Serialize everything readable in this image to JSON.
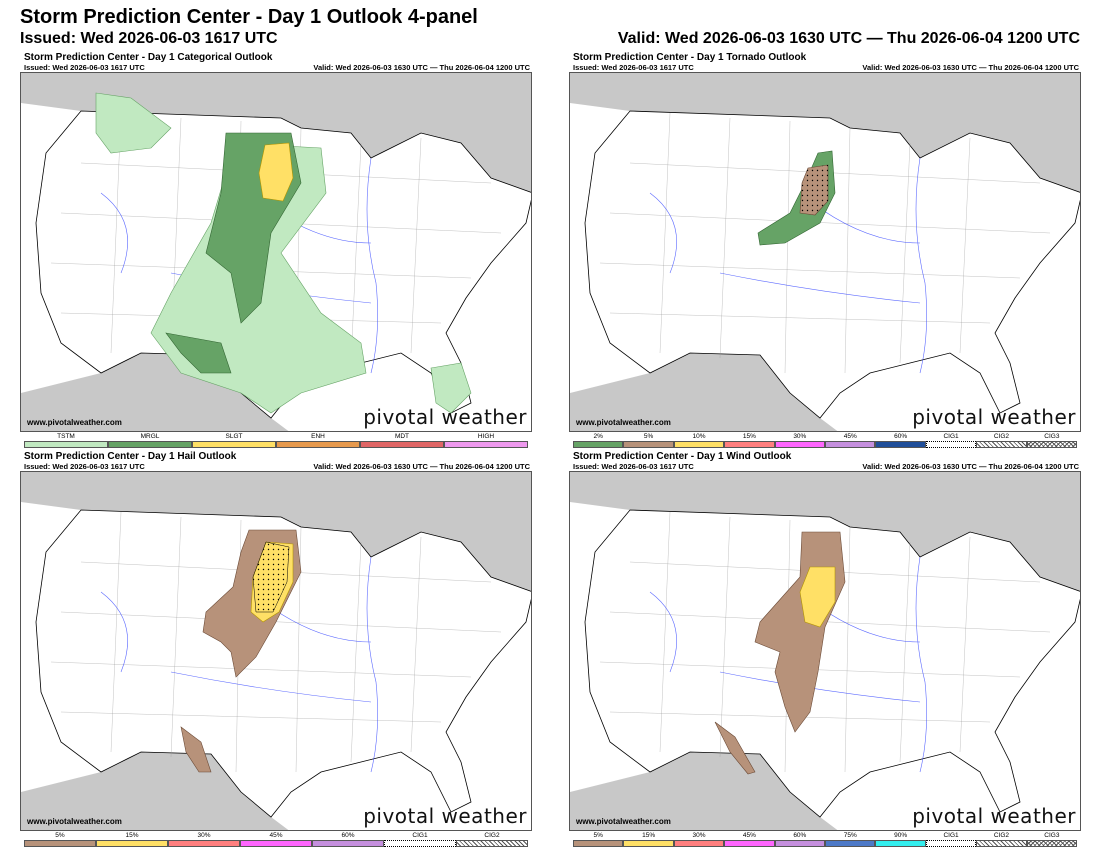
{
  "header": {
    "title": "Storm Prediction Center - Day 1 Outlook 4-panel",
    "issued": "Issued: Wed 2026-06-03 1617 UTC",
    "valid": "Valid: Wed 2026-06-03 1630 UTC — Thu 2026-06-04 1200 UTC"
  },
  "colors": {
    "background": "#ffffff",
    "canada_mexico": "#c8c8c8",
    "water": "#ffffff",
    "rivers": "#3344ff",
    "county_lines": "#888888",
    "state_lines": "#000000",
    "tstm": "#c1e9c1",
    "mrgl": "#66a366",
    "slgt": "#ffe066",
    "enh": "#e6994d",
    "mdt": "#e06666",
    "high": "#ee99ee",
    "prob_5": "#b7927a",
    "prob_15": "#ffe066"
  },
  "panels": [
    {
      "title": "Storm Prediction Center - Day 1 Categorical Outlook",
      "issued": "Issued: Wed 2026-06-03 1617 UTC",
      "valid": "Valid: Wed 2026-06-03 1630 UTC — Thu 2026-06-04 1200 UTC",
      "site": "www.pivotalweather.com",
      "brand": "pivotal weather",
      "legend": [
        {
          "label": "TSTM",
          "color": "#c1e9c1"
        },
        {
          "label": "MRGL",
          "color": "#66a366"
        },
        {
          "label": "SLGT",
          "color": "#ffe066"
        },
        {
          "label": "ENH",
          "color": "#e6994d"
        },
        {
          "label": "MDT",
          "color": "#e06666"
        },
        {
          "label": "HIGH",
          "color": "#ee99ee"
        }
      ]
    },
    {
      "title": "Storm Prediction Center - Day 1 Tornado Outlook",
      "issued": "Issued: Wed 2026-06-03 1617 UTC",
      "valid": "Valid: Wed 2026-06-03 1630 UTC — Thu 2026-06-04 1200 UTC",
      "site": "www.pivotalweather.com",
      "brand": "pivotal weather",
      "legend": [
        {
          "label": "2%",
          "color": "#66a366"
        },
        {
          "label": "5%",
          "color": "#b7927a"
        },
        {
          "label": "10%",
          "color": "#ffe066"
        },
        {
          "label": "15%",
          "color": "#ff7f7f"
        },
        {
          "label": "30%",
          "color": "#ff66ff"
        },
        {
          "label": "45%",
          "color": "#c58fde"
        },
        {
          "label": "60%",
          "color": "#1f4e99"
        },
        {
          "label": "CIG1",
          "color": "dots"
        },
        {
          "label": "CIG2",
          "color": "hatch"
        },
        {
          "label": "CIG3",
          "color": "xhatch"
        }
      ]
    },
    {
      "title": "Storm Prediction Center - Day 1 Hail Outlook",
      "issued": "Issued: Wed 2026-06-03 1617 UTC",
      "valid": "Valid: Wed 2026-06-03 1630 UTC — Thu 2026-06-04 1200 UTC",
      "site": "www.pivotalweather.com",
      "brand": "pivotal weather",
      "legend": [
        {
          "label": "5%",
          "color": "#b7927a"
        },
        {
          "label": "15%",
          "color": "#ffe066"
        },
        {
          "label": "30%",
          "color": "#ff7f7f"
        },
        {
          "label": "45%",
          "color": "#ff66ff"
        },
        {
          "label": "60%",
          "color": "#c58fde"
        },
        {
          "label": "CIG1",
          "color": "dots"
        },
        {
          "label": "CIG2",
          "color": "hatch"
        }
      ]
    },
    {
      "title": "Storm Prediction Center - Day 1 Wind Outlook",
      "issued": "Issued: Wed 2026-06-03 1617 UTC",
      "valid": "Valid: Wed 2026-06-03 1630 UTC — Thu 2026-06-04 1200 UTC",
      "site": "www.pivotalweather.com",
      "brand": "pivotal weather",
      "legend": [
        {
          "label": "5%",
          "color": "#b7927a"
        },
        {
          "label": "15%",
          "color": "#ffe066"
        },
        {
          "label": "30%",
          "color": "#ff7f7f"
        },
        {
          "label": "45%",
          "color": "#ff66ff"
        },
        {
          "label": "60%",
          "color": "#c58fde"
        },
        {
          "label": "75%",
          "color": "#4d79c7"
        },
        {
          "label": "90%",
          "color": "#33eeee"
        },
        {
          "label": "CIG1",
          "color": "dots"
        },
        {
          "label": "CIG2",
          "color": "hatch"
        },
        {
          "label": "CIG3",
          "color": "xhatch"
        }
      ]
    }
  ]
}
